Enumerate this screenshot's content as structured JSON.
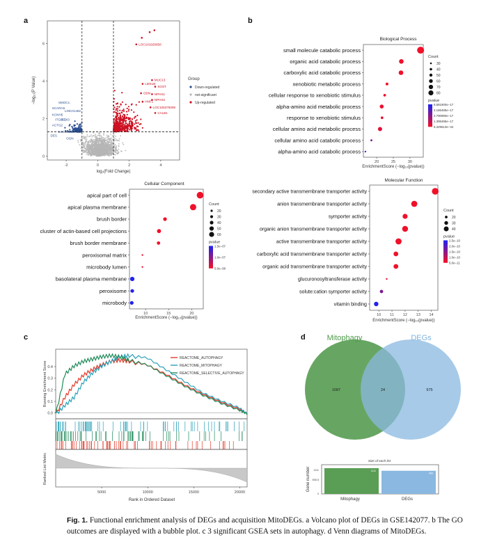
{
  "caption": {
    "fig_label": "Fig. 1.",
    "text": "Functional enrichment analysis of DEGs and acquisition MitoDEGs. a Volcano plot of DEGs in GSE142077. b The GO outcomes are displayed with a bubble plot. c 3 significant GSEA sets in autophagy. d Venn diagrams of MitoDEGs."
  },
  "panel_labels": {
    "a": "a",
    "b": "b",
    "c": "c",
    "d": "d"
  },
  "colors": {
    "up": "#cc1122",
    "down": "#2a4d8f",
    "ns": "#b5b5b5",
    "p_low": "#f0102a",
    "p_high": "#2222ee",
    "autophagy": "#e23b2a",
    "mitophagy": "#2aa0b8",
    "selective": "#1f8a5a",
    "venn_left": "#5a9e55",
    "venn_right": "#8ab8e0"
  },
  "chart_data": [
    {
      "id": "volcano",
      "type": "scatter",
      "xlabel": "log₂(Fold Change)",
      "ylabel": "−log₁₀(P Value)",
      "xlim": [
        -3.2,
        5.2
      ],
      "ylim": [
        -0.2,
        7.2
      ],
      "xticks": [
        -2,
        0,
        2,
        4
      ],
      "yticks": [
        0,
        2,
        4,
        6
      ],
      "fc_threshold": [
        -1,
        1
      ],
      "p_threshold": 1.3,
      "legend_title": "Group",
      "legend": [
        "Down-regulated",
        "not-significant",
        "Up-regulated"
      ],
      "labels_up": [
        {
          "text": "LOC101926658",
          "x": 2.6,
          "y": 5.95
        },
        {
          "text": "MUC13",
          "x": 3.6,
          "y": 4.05
        },
        {
          "text": "LMX1B",
          "x": 3.0,
          "y": 3.85
        },
        {
          "text": "SOST",
          "x": 3.8,
          "y": 3.7
        },
        {
          "text": "ODN",
          "x": 2.9,
          "y": 3.35
        },
        {
          "text": "NPHS1",
          "x": 3.6,
          "y": 3.3
        },
        {
          "text": "NPHS2",
          "x": 3.6,
          "y": 3.0
        },
        {
          "text": "HNF1",
          "x": 3.0,
          "y": 2.9
        },
        {
          "text": "LOC105376009",
          "x": 3.5,
          "y": 2.6
        },
        {
          "text": "CALB1",
          "x": 3.8,
          "y": 2.3
        }
      ],
      "labels_down": [
        {
          "text": "SMOC1",
          "x": -2.5,
          "y": 2.85
        },
        {
          "text": "SCARA5",
          "x": -2.9,
          "y": 2.55
        },
        {
          "text": "LINC01482",
          "x": -2.1,
          "y": 2.4
        },
        {
          "text": "KCNH5",
          "x": -2.9,
          "y": 2.2
        },
        {
          "text": "ITGBL1",
          "x": -2.7,
          "y": 1.95
        },
        {
          "text": "PTX3",
          "x": -2.3,
          "y": 1.95
        },
        {
          "text": "ACTG2",
          "x": -2.9,
          "y": 1.65
        },
        {
          "text": "LOC101927725",
          "x": -2.5,
          "y": 1.3
        },
        {
          "text": "DES",
          "x": -3.0,
          "y": 1.1
        },
        {
          "text": "OGN",
          "x": -2.0,
          "y": 0.95
        }
      ]
    },
    {
      "id": "bp",
      "type": "scatter",
      "title": "Biological Process",
      "xlabel": "EnrichmentScore (−log₁₀(pvalue))",
      "xlim": [
        16,
        34
      ],
      "xticks": [
        20,
        25,
        30
      ],
      "terms": [
        "small molecule catabolic process",
        "organic acid catabolic process",
        "carboxylic acid catabolic process",
        "xenobiotic metabolic process",
        "cellular response to xenobiotic stimulus",
        "alpha-amino acid metabolic process",
        "response to xenobiotic stimulus",
        "cellular amino acid metabolic process",
        "cellular amino acid catabolic process",
        "alpha-amino acid catabolic process"
      ],
      "values": [
        33.2,
        27.4,
        27.3,
        23.1,
        22.4,
        21.5,
        21.6,
        21.0,
        18.4,
        16.6
      ],
      "counts": [
        90,
        60,
        60,
        36,
        34,
        50,
        34,
        54,
        26,
        22
      ],
      "p_scale": [
        0,
        0,
        0,
        0,
        0,
        0.02,
        0.05,
        0.08,
        0.6,
        1.0
      ],
      "count_legend": [
        30,
        40,
        50,
        60,
        70,
        80
      ],
      "pvalue_legend": [
        "6.581900e−17",
        "4.186485e−17",
        "2.790990e−17",
        "1.395495e−17",
        "5.329613e−34"
      ]
    },
    {
      "id": "cc",
      "type": "scatter",
      "title": "Cellular Component",
      "xlabel": "EnrichmentScore (−log₁₀(pvalue))",
      "xlim": [
        6.5,
        22.5
      ],
      "xticks": [
        10,
        15,
        20
      ],
      "terms": [
        "apical part of cell",
        "apical plasma membrane",
        "brush border",
        "cluster of actin-based cell projections",
        "brush border membrane",
        "peroxisomal matrix",
        "microbody lumen",
        "basolateral plasma membrane",
        "peroxisome",
        "microbody"
      ],
      "values": [
        21.8,
        20.3,
        14.2,
        12.9,
        12.8,
        9.3,
        9.3,
        7.1,
        7.1,
        7.0
      ],
      "counts": [
        64,
        60,
        30,
        34,
        26,
        8,
        8,
        38,
        30,
        30
      ],
      "p_scale": [
        0,
        0,
        0,
        0,
        0,
        0.02,
        0.02,
        1.0,
        1.0,
        1.0
      ],
      "count_legend": [
        20,
        30,
        40,
        50,
        60
      ],
      "pvalue_legend": [
        "1.5e−07",
        "1.0e−07",
        "5.0e−08"
      ]
    },
    {
      "id": "mf",
      "type": "scatter",
      "title": "Molecular Function",
      "xlabel": "EnrichmentScore (−log₁₀(pvalue))",
      "xlim": [
        9.3,
        14.5
      ],
      "xticks": [
        10,
        11,
        12,
        13,
        14
      ],
      "terms": [
        "secondary active transmembrane transporter activity",
        "anion transmembrane transporter activity",
        "symporter activity",
        "organic anion transmembrane transporter activity",
        "active transmembrane transporter activity",
        "carboxylic acid transmembrane transporter activity",
        "organic acid transmembrane transporter activity",
        "glucuronosyltransferase activity",
        "solute:cation symporter activity",
        "vitamin binding"
      ],
      "values": [
        14.3,
        12.7,
        12.0,
        12.0,
        11.5,
        11.3,
        11.3,
        10.6,
        10.2,
        9.8
      ],
      "counts": [
        44,
        40,
        32,
        38,
        40,
        30,
        30,
        8,
        20,
        28
      ],
      "p_scale": [
        0,
        0,
        0,
        0,
        0,
        0,
        0,
        0.02,
        0.55,
        1.0
      ],
      "count_legend": [
        20,
        30,
        40
      ],
      "pvalue_legend": [
        "2.5e−10",
        "2.0e−10",
        "1.5e−10",
        "1.0e−10",
        "5.0e−11"
      ]
    },
    {
      "id": "gsea",
      "type": "line",
      "ylabel": "Running Enrichment Score",
      "ylabel2": "Ranked List Metric",
      "xlabel": "Rank in Ordered Dataset",
      "xlim": [
        0,
        20800
      ],
      "ylim": [
        -0.05,
        0.55
      ],
      "yticks": [
        0.0,
        0.1,
        0.2,
        0.3,
        0.4
      ],
      "xticks": [
        5000,
        10000,
        15000,
        20000
      ],
      "series": [
        {
          "name": "REACTOME_AUTOPHAGY",
          "x": [
            0,
            1000,
            2000,
            3000,
            4000,
            5000,
            6000,
            7000,
            8000,
            10000,
            12000,
            14000,
            16000,
            18000,
            20000,
            20800
          ],
          "y": [
            0.0,
            0.15,
            0.26,
            0.34,
            0.39,
            0.43,
            0.46,
            0.47,
            0.46,
            0.42,
            0.34,
            0.25,
            0.17,
            0.1,
            0.04,
            0.0
          ]
        },
        {
          "name": "REACTOME_MITOPHAGY",
          "x": [
            0,
            1000,
            2000,
            3000,
            4000,
            5000,
            6000,
            7000,
            8000,
            10000,
            12000,
            14000,
            16000,
            18000,
            20000,
            20800
          ],
          "y": [
            0.0,
            0.08,
            0.15,
            0.28,
            0.36,
            0.42,
            0.46,
            0.5,
            0.51,
            0.48,
            0.38,
            0.28,
            0.18,
            0.11,
            0.05,
            0.0
          ]
        },
        {
          "name": "REACTOME_SELECTIVE_AUTOPHAGY",
          "x": [
            0,
            1000,
            2000,
            3000,
            4000,
            5000,
            6000,
            7000,
            8000,
            10000,
            12000,
            14000,
            16000,
            18000,
            20000,
            20800
          ],
          "y": [
            0.0,
            0.35,
            0.42,
            0.46,
            0.48,
            0.5,
            0.51,
            0.5,
            0.47,
            0.42,
            0.33,
            0.24,
            0.16,
            0.09,
            0.03,
            0.0
          ]
        }
      ]
    },
    {
      "id": "venn",
      "type": "venn",
      "sets": [
        "Mitophagy",
        "DEGs"
      ],
      "only_left": "1087",
      "intersection": "24",
      "only_right": "975"
    },
    {
      "id": "setsize",
      "type": "bar",
      "title": "Size of each list",
      "ylabel": "Gene number",
      "categories": [
        "Mitophagy",
        "DEGs"
      ],
      "values": [
        1111,
        999
      ],
      "value_labels": [
        "1111",
        "999"
      ],
      "yticks": [
        "1111",
        "555.5",
        "0"
      ]
    }
  ]
}
